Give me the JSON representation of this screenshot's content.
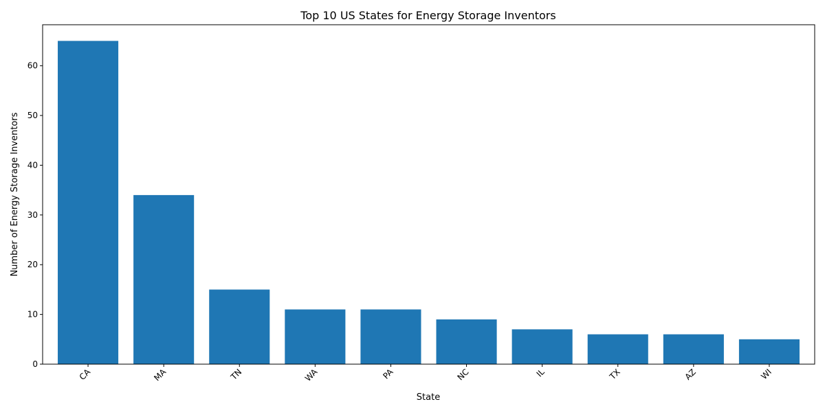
{
  "chart_data": {
    "type": "bar",
    "title": "Top 10 US States for Energy Storage Inventors",
    "xlabel": "State",
    "ylabel": "Number of Energy Storage Inventors",
    "categories": [
      "CA",
      "MA",
      "TN",
      "WA",
      "PA",
      "NC",
      "IL",
      "TX",
      "AZ",
      "WI"
    ],
    "values": [
      65,
      34,
      15,
      11,
      11,
      9,
      7,
      6,
      6,
      5
    ],
    "ylim": [
      0,
      68.25
    ],
    "yticks": [
      0,
      10,
      20,
      30,
      40,
      50,
      60
    ],
    "bar_color": "#1f77b4",
    "grid": false,
    "legend": "none",
    "xtick_rotation": "45"
  }
}
